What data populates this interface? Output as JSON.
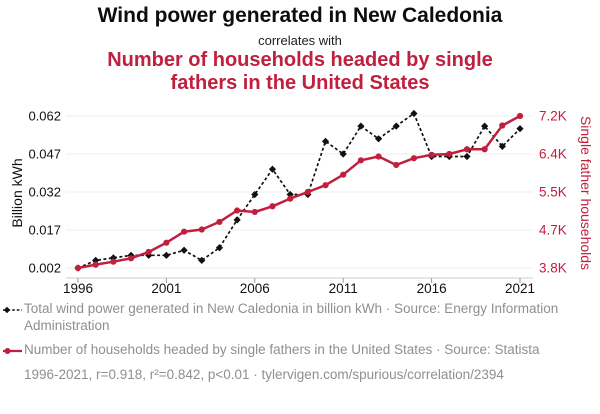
{
  "header": {
    "title_black": "Wind power generated in New Caledonia",
    "connector": "correlates with",
    "title_red": "Number of households headed by single fathers in the United States"
  },
  "colors": {
    "accent_red": "#c01f3e",
    "series_black": "#111111",
    "legend_gray": "#8f8f8f",
    "gridline_gray": "#ededed",
    "axis_gray": "#cccccc"
  },
  "chart_data": {
    "type": "line",
    "x": [
      1996,
      1997,
      1998,
      1999,
      2000,
      2001,
      2002,
      2003,
      2004,
      2005,
      2006,
      2007,
      2008,
      2009,
      2010,
      2011,
      2012,
      2013,
      2014,
      2015,
      2016,
      2017,
      2018,
      2019,
      2020,
      2021
    ],
    "x_ticks": [
      1996,
      2001,
      2006,
      2011,
      2016,
      2021
    ],
    "left_axis": {
      "label": "Billion kWh",
      "ticks": [
        0.002,
        0.017,
        0.032,
        0.047,
        0.062
      ],
      "tick_labels": [
        "0.002",
        "0.017",
        "0.032",
        "0.047",
        "0.062"
      ]
    },
    "right_axis": {
      "label": "Single father households",
      "tick_values": [
        3.8,
        4.7,
        5.5,
        6.4,
        7.2
      ],
      "tick_labels": [
        "3.8K",
        "4.7K",
        "5.5K",
        "6.4K",
        "7.2K"
      ]
    },
    "series": [
      {
        "id": "wind-power-new-caledonia",
        "name": "Total wind power generated in New Caledonia",
        "axis": "left",
        "unit": "billion kWh",
        "color": "#111111",
        "marker": "diamond",
        "dash": "3 2.4",
        "line_width": 1.7,
        "values": [
          0.002,
          0.005,
          0.006,
          0.007,
          0.007,
          0.007,
          0.009,
          0.005,
          0.01,
          0.021,
          0.031,
          0.041,
          0.031,
          0.031,
          0.052,
          0.047,
          0.058,
          0.053,
          0.058,
          0.063,
          0.046,
          0.046,
          0.046,
          0.058,
          0.05,
          0.057
        ]
      },
      {
        "id": "single-father-households-us",
        "name": "Number of households headed by single fathers in the United States",
        "axis": "right",
        "unit": "thousand households",
        "color": "#c01f3e",
        "marker": "circle",
        "dash": null,
        "line_width": 2.5,
        "values": [
          3.8,
          3.88,
          3.95,
          4.03,
          4.18,
          4.4,
          4.66,
          4.71,
          4.87,
          5.11,
          5.08,
          5.2,
          5.36,
          5.5,
          5.66,
          5.91,
          6.25,
          6.34,
          6.14,
          6.3,
          6.38,
          6.4,
          6.5,
          6.5,
          7.0,
          7.2
        ]
      }
    ]
  },
  "legend": {
    "items": [
      {
        "text": "Total wind power generated in New Caledonia in billion kWh · Source: Energy Information Administration"
      },
      {
        "text": "Number of households headed by single fathers in the United States · Source: Statista"
      }
    ]
  },
  "footer": {
    "stats": "1996-2021, r=0.918, r²=0.842, p<0.01 · tylervigen.com/spurious/correlation/2394"
  }
}
